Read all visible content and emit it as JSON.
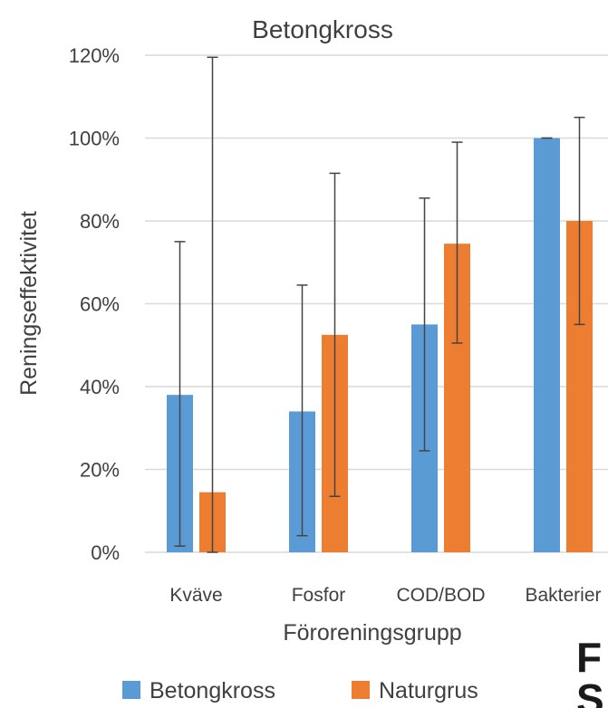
{
  "chart_data": {
    "type": "bar",
    "title": "Betongkross",
    "xlabel": "Föroreningsgrupp",
    "ylabel": "Reningseffektivitet",
    "categories": [
      "Kväve",
      "Fosfor",
      "COD/BOD",
      "Bakterier"
    ],
    "ylim": [
      0,
      1.2
    ],
    "yticks": [
      "0%",
      "20%",
      "40%",
      "60%",
      "80%",
      "100%",
      "120%"
    ],
    "grid": true,
    "legend_position": "bottom",
    "series": [
      {
        "name": "Betongkross",
        "color": "#5B9BD5",
        "values": [
          0.38,
          0.34,
          0.55,
          1.0
        ],
        "error_low": [
          0.015,
          0.04,
          0.245,
          1.0
        ],
        "error_high": [
          0.75,
          0.645,
          0.855,
          1.0
        ]
      },
      {
        "name": "Naturgrus",
        "color": "#ED7D31",
        "values": [
          0.145,
          0.525,
          0.745,
          0.8
        ],
        "error_low": [
          0.0,
          0.135,
          0.505,
          0.55
        ],
        "error_high": [
          1.195,
          0.915,
          0.99,
          1.05
        ]
      }
    ]
  },
  "logo": {
    "text": "F S"
  }
}
